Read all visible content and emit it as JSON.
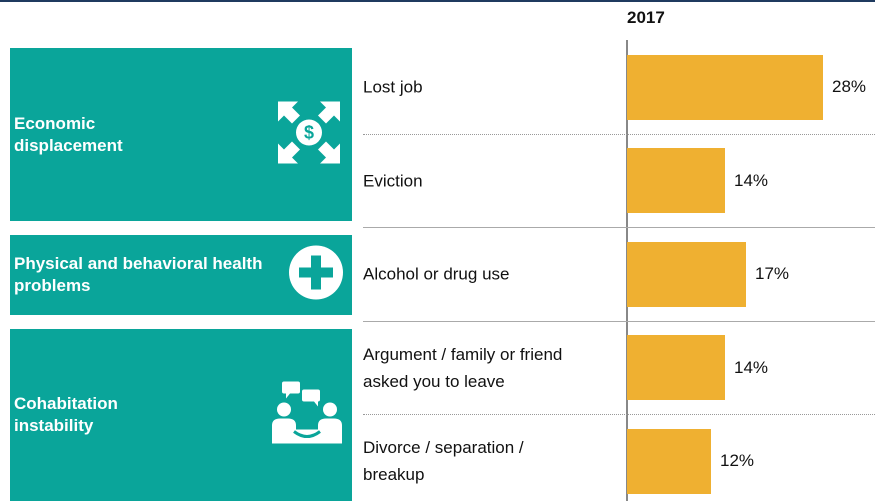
{
  "chart_data": {
    "type": "bar",
    "orientation": "horizontal",
    "header": "2017",
    "color": "#efb031",
    "group_color": "#0aa59a",
    "xlim": [
      0,
      35
    ],
    "groups": [
      {
        "label": "Economic displacement",
        "categories": [
          "Lost job",
          "Eviction"
        ],
        "values": [
          28,
          14
        ],
        "value_labels": [
          "28%",
          "14%"
        ]
      },
      {
        "label": "Physical and behavioral health problems",
        "categories": [
          "Alcohol or drug use"
        ],
        "values": [
          17
        ],
        "value_labels": [
          "17%"
        ]
      },
      {
        "label": "Cohabitation instability",
        "categories": [
          "Argument / family or friend asked you to leave",
          "Divorce / separation / breakup"
        ],
        "values": [
          14,
          12
        ],
        "value_labels": [
          "14%",
          "12%"
        ]
      }
    ]
  }
}
